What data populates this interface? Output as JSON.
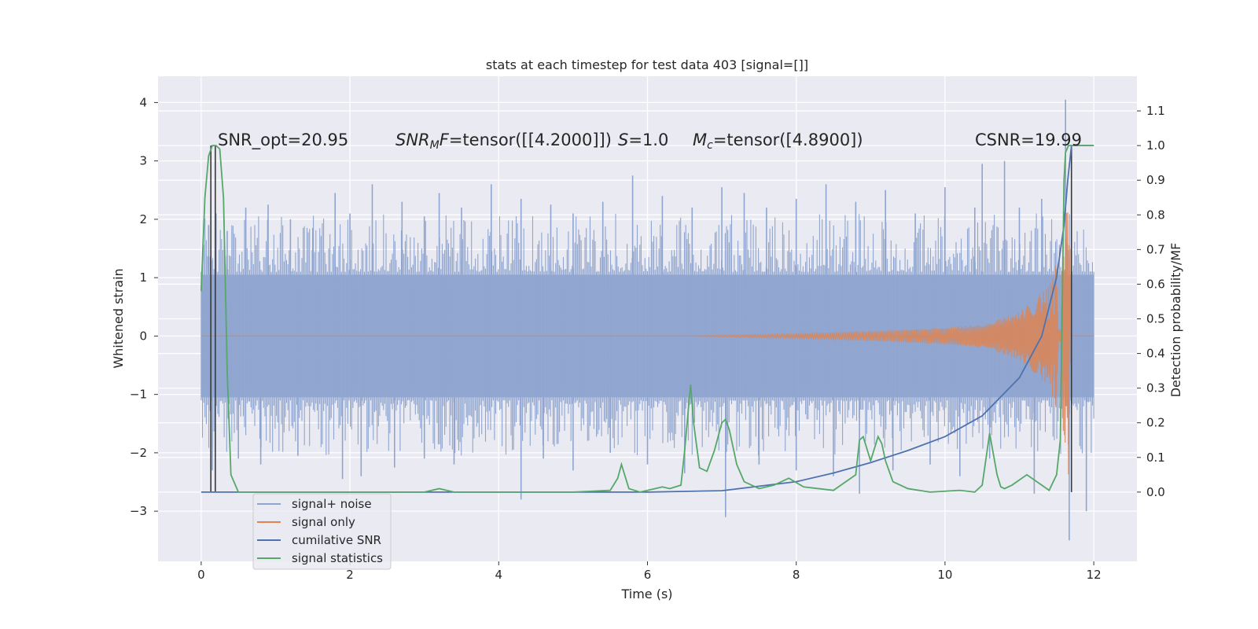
{
  "chart_data": {
    "type": "line",
    "title": "stats at each timestep for test data 403 [signal=[]]",
    "xlabel": "Time (s)",
    "ylabel_left": "Whitened strain",
    "ylabel_right": "Detection probability/MF",
    "xlim": [
      -0.58,
      12.58
    ],
    "ylim_left": [
      -3.86,
      4.45
    ],
    "ylim_right": [
      -0.2,
      1.2
    ],
    "xticks": [
      0,
      2,
      4,
      6,
      8,
      10,
      12
    ],
    "xtick_labels": [
      "0",
      "2",
      "4",
      "6",
      "8",
      "10",
      "12"
    ],
    "yticks_left": [
      -3,
      -2,
      -1,
      0,
      1,
      2,
      3,
      4
    ],
    "ytick_labels_left": [
      "−3",
      "−2",
      "−1",
      "0",
      "1",
      "2",
      "3",
      "4"
    ],
    "yticks_right": [
      0.0,
      0.1,
      0.2,
      0.3,
      0.4,
      0.5,
      0.6,
      0.7,
      0.8,
      0.9,
      1.0,
      1.1
    ],
    "ytick_labels_right": [
      "0.0",
      "0.1",
      "0.2",
      "0.3",
      "0.4",
      "0.5",
      "0.6",
      "0.7",
      "0.8",
      "0.9",
      "1.0",
      "1.1"
    ],
    "grid": true,
    "legend_position": "lower-left",
    "background": "#eaeaf2",
    "annotations": {
      "snr_opt": "SNR_opt=20.95",
      "snr_mf_sym": "SNR",
      "snr_mf_sub": "M",
      "snr_mf_f": "F",
      "snr_mf_rest": "=tensor([[4.2000]])",
      "s_sym": "S",
      "s_rest": "=1.0",
      "mc_sym": "M",
      "mc_sub": "c",
      "mc_rest": "=tensor([4.8900])",
      "csnr": "CSNR=19.99"
    },
    "series": [
      {
        "name": "signal+ noise",
        "axis": "left",
        "color": "#8fa5cf",
        "kind": "noise_band",
        "x_range": [
          0,
          12
        ],
        "band": [
          -1.05,
          1.05
        ],
        "spikes": [
          [
            0.1,
            1.9
          ],
          [
            0.2,
            2.1
          ],
          [
            0.35,
            1.8
          ],
          [
            0.6,
            2.2
          ],
          [
            0.9,
            2.25
          ],
          [
            1.2,
            2.0
          ],
          [
            1.5,
            1.85
          ],
          [
            1.8,
            2.45
          ],
          [
            2.0,
            2.1
          ],
          [
            2.3,
            2.6
          ],
          [
            2.7,
            2.3
          ],
          [
            3.0,
            2.05
          ],
          [
            3.2,
            2.45
          ],
          [
            3.5,
            2.2
          ],
          [
            3.9,
            2.6
          ],
          [
            4.3,
            2.35
          ],
          [
            4.7,
            2.25
          ],
          [
            5.0,
            2.1
          ],
          [
            5.4,
            2.3
          ],
          [
            5.8,
            2.75
          ],
          [
            6.2,
            2.4
          ],
          [
            6.6,
            2.2
          ],
          [
            7.0,
            2.55
          ],
          [
            7.3,
            2.45
          ],
          [
            7.6,
            2.2
          ],
          [
            8.0,
            2.35
          ],
          [
            8.4,
            2.6
          ],
          [
            8.8,
            2.3
          ],
          [
            9.2,
            2.5
          ],
          [
            9.6,
            2.1
          ],
          [
            10.0,
            2.55
          ],
          [
            10.4,
            2.2
          ],
          [
            10.5,
            2.95
          ],
          [
            10.8,
            3.0
          ],
          [
            11.0,
            2.2
          ],
          [
            11.3,
            2.35
          ],
          [
            11.62,
            4.05
          ],
          [
            0.15,
            -2.3
          ],
          [
            0.5,
            -2.1
          ],
          [
            0.8,
            -2.2
          ],
          [
            1.3,
            -2.05
          ],
          [
            1.9,
            -2.45
          ],
          [
            2.15,
            -2.4
          ],
          [
            2.6,
            -2.25
          ],
          [
            3.0,
            -2.1
          ],
          [
            3.4,
            -2.2
          ],
          [
            4.3,
            -2.8
          ],
          [
            4.6,
            -2.1
          ],
          [
            5.0,
            -2.3
          ],
          [
            5.5,
            -2.0
          ],
          [
            6.0,
            -2.2
          ],
          [
            6.5,
            -2.35
          ],
          [
            7.05,
            -3.1
          ],
          [
            7.5,
            -2.2
          ],
          [
            8.0,
            -2.3
          ],
          [
            8.5,
            -2.4
          ],
          [
            8.85,
            -2.7
          ],
          [
            9.3,
            -2.3
          ],
          [
            9.8,
            -2.2
          ],
          [
            10.2,
            -2.4
          ],
          [
            10.6,
            -2.1
          ],
          [
            11.2,
            -2.7
          ],
          [
            11.67,
            -3.5
          ],
          [
            11.9,
            -3.0
          ]
        ]
      },
      {
        "name": "signal only",
        "axis": "left",
        "color": "#dd8452",
        "kind": "chirp",
        "envelope": [
          [
            0,
            0.0
          ],
          [
            6.5,
            0.0
          ],
          [
            8,
            0.04
          ],
          [
            9,
            0.08
          ],
          [
            10,
            0.14
          ],
          [
            10.5,
            0.2
          ],
          [
            11,
            0.4
          ],
          [
            11.4,
            0.85
          ],
          [
            11.6,
            1.7
          ],
          [
            11.66,
            2.4
          ],
          [
            11.7,
            0.0
          ],
          [
            12,
            0.0
          ]
        ]
      },
      {
        "name": "cumilative SNR",
        "axis": "right",
        "color": "#4c72b0",
        "x": [
          0,
          6.0,
          7.0,
          8.0,
          8.5,
          9.0,
          9.5,
          10.0,
          10.5,
          11.0,
          11.3,
          11.5,
          11.6,
          11.65,
          11.7,
          12.0
        ],
        "values": [
          0.0,
          0.0,
          0.004,
          0.03,
          0.055,
          0.085,
          0.12,
          0.16,
          0.22,
          0.33,
          0.45,
          0.62,
          0.77,
          0.9,
          1.0,
          1.0
        ]
      },
      {
        "name": "signal statistics",
        "axis": "right",
        "color": "#55a868",
        "x": [
          0,
          0.05,
          0.1,
          0.15,
          0.2,
          0.25,
          0.3,
          0.35,
          0.4,
          0.5,
          1.0,
          2.0,
          3.0,
          3.2,
          3.4,
          4.0,
          5.0,
          5.5,
          5.6,
          5.65,
          5.75,
          5.9,
          6.1,
          6.2,
          6.3,
          6.45,
          6.5,
          6.55,
          6.58,
          6.62,
          6.7,
          6.8,
          6.9,
          7.0,
          7.05,
          7.1,
          7.2,
          7.3,
          7.5,
          7.7,
          7.9,
          8.1,
          8.5,
          8.8,
          8.85,
          8.9,
          9.0,
          9.1,
          9.15,
          9.2,
          9.3,
          9.5,
          9.8,
          10.2,
          10.4,
          10.5,
          10.6,
          10.7,
          10.75,
          10.8,
          10.9,
          11.1,
          11.3,
          11.4,
          11.5,
          11.55,
          11.6,
          11.62,
          11.66,
          11.7,
          11.8,
          12.0
        ],
        "values": [
          0.58,
          0.85,
          0.97,
          1.0,
          1.0,
          0.99,
          0.85,
          0.35,
          0.05,
          0.0,
          0.0,
          0.0,
          0.0,
          0.01,
          0.0,
          0.0,
          0.0,
          0.005,
          0.04,
          0.08,
          0.01,
          0.0,
          0.01,
          0.015,
          0.01,
          0.02,
          0.12,
          0.24,
          0.31,
          0.2,
          0.07,
          0.06,
          0.12,
          0.2,
          0.21,
          0.18,
          0.08,
          0.03,
          0.01,
          0.02,
          0.04,
          0.015,
          0.005,
          0.05,
          0.15,
          0.16,
          0.09,
          0.16,
          0.14,
          0.09,
          0.03,
          0.01,
          0.0,
          0.005,
          0.0,
          0.02,
          0.17,
          0.05,
          0.015,
          0.01,
          0.02,
          0.05,
          0.02,
          0.005,
          0.05,
          0.15,
          0.9,
          0.98,
          1.0,
          1.0,
          1.0,
          1.0
        ]
      }
    ],
    "markers": [
      {
        "x": 0.13,
        "values": [
          0.0,
          1.0
        ],
        "color": "#3a3a3a"
      },
      {
        "x": 0.19,
        "values": [
          0.0,
          1.0
        ],
        "color": "#3a3a3a"
      },
      {
        "x": 11.7,
        "values": [
          0.0,
          1.0
        ],
        "color": "#3a3a3a"
      }
    ],
    "legend": [
      {
        "label": "signal+ noise",
        "color": "#8fa5cf"
      },
      {
        "label": "signal only",
        "color": "#dd8452"
      },
      {
        "label": "cumilative SNR",
        "color": "#4c72b0"
      },
      {
        "label": "signal statistics",
        "color": "#55a868"
      }
    ]
  }
}
